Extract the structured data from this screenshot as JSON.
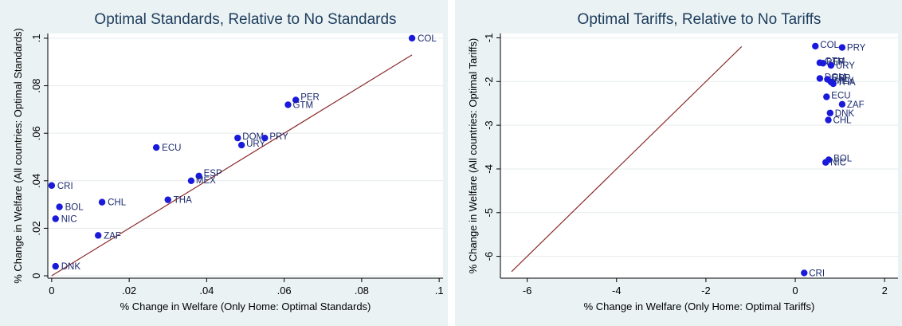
{
  "chart_data": [
    {
      "type": "scatter",
      "title": "Optimal Standards, Relative to No Standards",
      "xlabel": "% Change in Welfare (Only Home: Optimal Standards)",
      "ylabel": "% Change in Welfare (All countries: Optimal Standards)",
      "xlim": [
        -0.001,
        0.101
      ],
      "ylim": [
        -0.001,
        0.102
      ],
      "xticks": [
        0,
        0.02,
        0.04,
        0.06,
        0.08,
        0.1
      ],
      "xtick_labels": [
        "0",
        ".02",
        ".04",
        ".06",
        ".08",
        ".1"
      ],
      "yticks": [
        0,
        0.02,
        0.04,
        0.06,
        0.08,
        0.1
      ],
      "ytick_labels": [
        "0",
        ".02",
        ".04",
        ".06",
        ".08",
        ".1"
      ],
      "grid": true,
      "marker_color": "#1a1adb",
      "line_color": "#8b2a2a",
      "fit_line": {
        "x": [
          0,
          0.093
        ],
        "y": [
          0,
          0.093
        ]
      },
      "points": [
        {
          "label": "COL",
          "x": 0.093,
          "y": 0.1
        },
        {
          "label": "PER",
          "x": 0.063,
          "y": 0.074
        },
        {
          "label": "GTM",
          "x": 0.061,
          "y": 0.072
        },
        {
          "label": "DOM",
          "x": 0.048,
          "y": 0.058
        },
        {
          "label": "PRY",
          "x": 0.055,
          "y": 0.058
        },
        {
          "label": "URY",
          "x": 0.049,
          "y": 0.055
        },
        {
          "label": "ECU",
          "x": 0.027,
          "y": 0.054
        },
        {
          "label": "ESP",
          "x": 0.038,
          "y": 0.042
        },
        {
          "label": "MEX",
          "x": 0.036,
          "y": 0.04
        },
        {
          "label": "CRI",
          "x": 0.0,
          "y": 0.038
        },
        {
          "label": "THA",
          "x": 0.03,
          "y": 0.032
        },
        {
          "label": "CHL",
          "x": 0.013,
          "y": 0.031
        },
        {
          "label": "BOL",
          "x": 0.002,
          "y": 0.029
        },
        {
          "label": "NIC",
          "x": 0.001,
          "y": 0.024
        },
        {
          "label": "ZAF",
          "x": 0.012,
          "y": 0.017
        },
        {
          "label": "DNK",
          "x": 0.001,
          "y": 0.004
        }
      ]
    },
    {
      "type": "scatter",
      "title": "Optimal Tariffs, Relative to No Tariffs",
      "xlabel": "% Change in Welfare (Only Home: Optimal Tariffs)",
      "ylabel": "% Change in Welfare (All countries: Optimal Tariffs)",
      "xlim": [
        -6.6,
        2.3
      ],
      "ylim": [
        -6.5,
        -0.9
      ],
      "xticks": [
        -6,
        -4,
        -2,
        0,
        2
      ],
      "xtick_labels": [
        "-6",
        "-4",
        "-2",
        "0",
        "2"
      ],
      "yticks": [
        -1,
        -2,
        -3,
        -4,
        -5,
        -6
      ],
      "ytick_labels": [
        "-1",
        "-2",
        "-3",
        "-4",
        "-5",
        "-6"
      ],
      "grid": true,
      "marker_color": "#1a1adb",
      "line_color": "#8b2a2a",
      "fit_line": {
        "x": [
          -6.35,
          -1.2
        ],
        "y": [
          -6.35,
          -1.2
        ]
      },
      "points": [
        {
          "label": "COL",
          "x": 0.45,
          "y": -1.19
        },
        {
          "label": "PRY",
          "x": 1.05,
          "y": -1.22
        },
        {
          "label": "GTM",
          "x": 0.55,
          "y": -1.57
        },
        {
          "label": "PER",
          "x": 0.62,
          "y": -1.58
        },
        {
          "label": "URY",
          "x": 0.8,
          "y": -1.63
        },
        {
          "label": "DOM",
          "x": 0.55,
          "y": -1.93
        },
        {
          "label": "ESP",
          "x": 0.72,
          "y": -1.95
        },
        {
          "label": "MEX",
          "x": 0.8,
          "y": -2.01
        },
        {
          "label": "THA",
          "x": 0.85,
          "y": -2.05
        },
        {
          "label": "ECU",
          "x": 0.7,
          "y": -2.35
        },
        {
          "label": "ZAF",
          "x": 1.05,
          "y": -2.52
        },
        {
          "label": "DNK",
          "x": 0.78,
          "y": -2.72
        },
        {
          "label": "CHL",
          "x": 0.74,
          "y": -2.88
        },
        {
          "label": "BOL",
          "x": 0.75,
          "y": -3.79
        },
        {
          "label": "NIC",
          "x": 0.68,
          "y": -3.85
        },
        {
          "label": "CRI",
          "x": 0.2,
          "y": -6.38
        }
      ]
    }
  ]
}
